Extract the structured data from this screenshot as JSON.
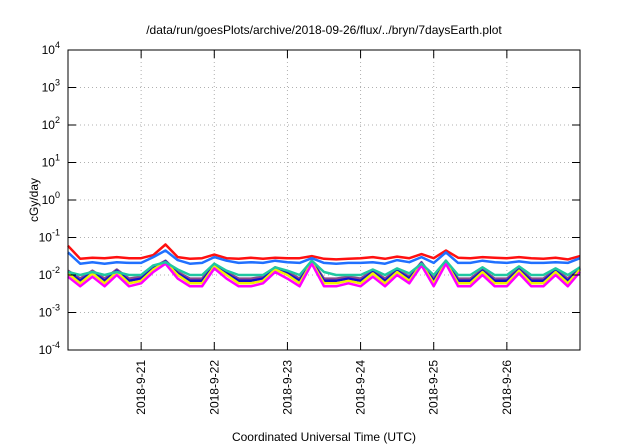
{
  "chart_data": {
    "type": "line",
    "title": "/data/run/goesPlots/archive/2018-09-26/flux/../bryn/7daysEarth.plot",
    "xlabel": "Coordinated Universal Time (UTC)",
    "ylabel": "cGy/day",
    "yscale": "log",
    "ylim": [
      0.0001,
      10000
    ],
    "ytick_exponents": [
      -4,
      -3,
      -2,
      -1,
      0,
      1,
      2,
      3,
      4
    ],
    "ytick_base": "10",
    "xlim_hours": [
      0,
      168
    ],
    "x_start": "2018-09-20 00:00",
    "xticks": [
      {
        "hour": 24,
        "label": "2018-9-21"
      },
      {
        "hour": 48,
        "label": "2018-9-22"
      },
      {
        "hour": 72,
        "label": "2018-9-23"
      },
      {
        "hour": 96,
        "label": "2018-9-24"
      },
      {
        "hour": 120,
        "label": "2018-9-25"
      },
      {
        "hour": 144,
        "label": "2018-9-26"
      }
    ],
    "grid": true,
    "x_step_hours": 4,
    "series": [
      {
        "name": "purple",
        "color": "#8b4a8b",
        "values": [
          0.013,
          0.008,
          0.013,
          0.008,
          0.014,
          0.008,
          0.009,
          0.016,
          0.024,
          0.012,
          0.008,
          0.008,
          0.019,
          0.012,
          0.008,
          0.008,
          0.009,
          0.016,
          0.012,
          0.008,
          0.024,
          0.008,
          0.008,
          0.009,
          0.008,
          0.013,
          0.008,
          0.014,
          0.009,
          0.022,
          0.008,
          0.024,
          0.008,
          0.008,
          0.014,
          0.008,
          0.008,
          0.015,
          0.008,
          0.008,
          0.014,
          0.008,
          0.016
        ]
      },
      {
        "name": "navy",
        "color": "#1010d0",
        "values": [
          0.012,
          0.007,
          0.012,
          0.007,
          0.013,
          0.007,
          0.008,
          0.015,
          0.023,
          0.011,
          0.007,
          0.007,
          0.018,
          0.011,
          0.007,
          0.007,
          0.008,
          0.015,
          0.011,
          0.007,
          0.023,
          0.007,
          0.007,
          0.008,
          0.007,
          0.012,
          0.007,
          0.013,
          0.008,
          0.021,
          0.007,
          0.023,
          0.007,
          0.007,
          0.013,
          0.007,
          0.007,
          0.014,
          0.007,
          0.007,
          0.013,
          0.007,
          0.015
        ]
      },
      {
        "name": "yellow",
        "color": "#f0f000",
        "values": [
          0.011,
          0.006,
          0.011,
          0.006,
          0.012,
          0.006,
          0.007,
          0.014,
          0.022,
          0.01,
          0.006,
          0.006,
          0.017,
          0.01,
          0.006,
          0.006,
          0.007,
          0.014,
          0.01,
          0.006,
          0.022,
          0.006,
          0.006,
          0.007,
          0.006,
          0.011,
          0.006,
          0.012,
          0.007,
          0.02,
          0.006,
          0.022,
          0.006,
          0.006,
          0.012,
          0.006,
          0.006,
          0.013,
          0.006,
          0.006,
          0.012,
          0.006,
          0.014
        ]
      },
      {
        "name": "magenta",
        "color": "#ff00ff",
        "values": [
          0.009,
          0.005,
          0.009,
          0.005,
          0.01,
          0.005,
          0.006,
          0.012,
          0.02,
          0.008,
          0.005,
          0.005,
          0.015,
          0.008,
          0.005,
          0.005,
          0.006,
          0.012,
          0.008,
          0.005,
          0.02,
          0.005,
          0.005,
          0.006,
          0.005,
          0.009,
          0.005,
          0.01,
          0.006,
          0.018,
          0.005,
          0.02,
          0.005,
          0.005,
          0.01,
          0.005,
          0.005,
          0.011,
          0.005,
          0.005,
          0.01,
          0.005,
          0.012
        ]
      },
      {
        "name": "teal",
        "color": "#20c8a0",
        "values": [
          0.012,
          0.01,
          0.012,
          0.01,
          0.012,
          0.01,
          0.01,
          0.018,
          0.022,
          0.014,
          0.01,
          0.01,
          0.02,
          0.013,
          0.01,
          0.01,
          0.01,
          0.016,
          0.013,
          0.01,
          0.024,
          0.012,
          0.01,
          0.01,
          0.01,
          0.014,
          0.01,
          0.015,
          0.011,
          0.02,
          0.01,
          0.024,
          0.01,
          0.01,
          0.016,
          0.01,
          0.01,
          0.017,
          0.01,
          0.01,
          0.015,
          0.01,
          0.016
        ]
      },
      {
        "name": "red",
        "color": "#ff1010",
        "values": [
          0.06,
          0.027,
          0.029,
          0.028,
          0.03,
          0.028,
          0.028,
          0.034,
          0.065,
          0.03,
          0.027,
          0.028,
          0.035,
          0.028,
          0.027,
          0.029,
          0.027,
          0.029,
          0.028,
          0.028,
          0.032,
          0.027,
          0.026,
          0.027,
          0.028,
          0.03,
          0.027,
          0.031,
          0.028,
          0.036,
          0.028,
          0.045,
          0.029,
          0.028,
          0.03,
          0.029,
          0.028,
          0.03,
          0.028,
          0.027,
          0.029,
          0.026,
          0.032
        ]
      },
      {
        "name": "blue",
        "color": "#2070ff",
        "values": [
          0.04,
          0.02,
          0.022,
          0.02,
          0.022,
          0.021,
          0.021,
          0.03,
          0.045,
          0.025,
          0.02,
          0.021,
          0.03,
          0.024,
          0.021,
          0.022,
          0.021,
          0.024,
          0.022,
          0.021,
          0.028,
          0.021,
          0.02,
          0.021,
          0.021,
          0.022,
          0.02,
          0.025,
          0.022,
          0.03,
          0.021,
          0.04,
          0.021,
          0.021,
          0.024,
          0.022,
          0.021,
          0.023,
          0.021,
          0.021,
          0.022,
          0.021,
          0.028
        ]
      }
    ]
  }
}
